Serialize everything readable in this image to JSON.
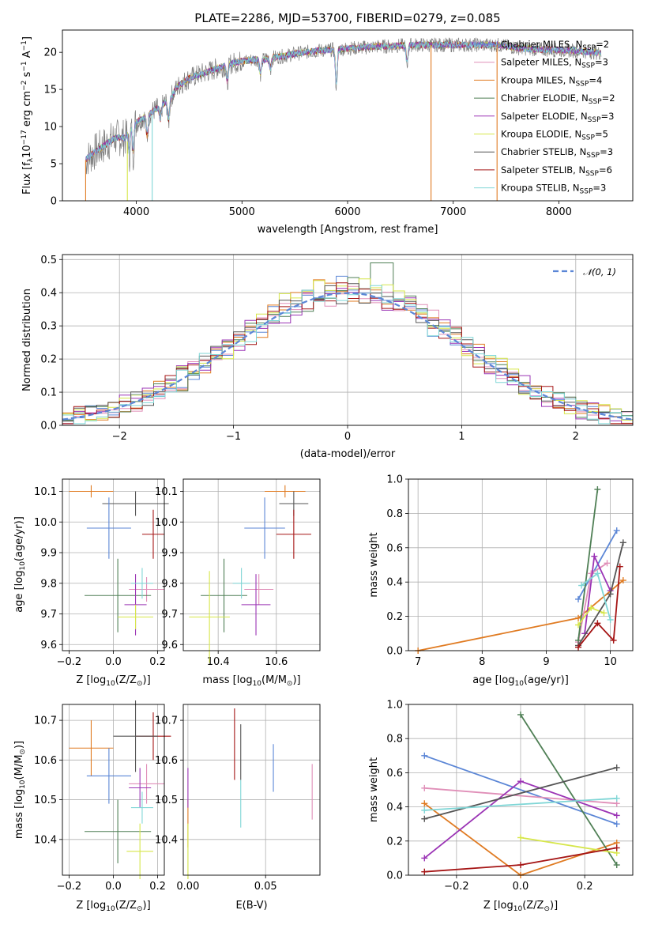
{
  "title": "PLATE=2286, MJD=53700, FIBERID=0279, z=0.085",
  "colors": {
    "Chabrier MILES": "#5b86d6",
    "Salpeter MILES": "#e08fb8",
    "Kroupa MILES": "#e07b22",
    "Chabrier ELODIE": "#4f7f55",
    "Salpeter ELODIE": "#9b34b5",
    "Kroupa ELODIE": "#d6e64a",
    "Chabrier STELIB": "#555555",
    "Salpeter STELIB": "#a51515",
    "Kroupa STELIB": "#7fd6d6",
    "data": "#7f7f7f",
    "normal": "#5b86d6"
  },
  "chart_data": [
    {
      "type": "line",
      "id": "spectrum",
      "xlabel": "wavelength [Angstrom, rest frame]",
      "ylabel": "Flux [f",
      "ylabel_parts": [
        "Flux [f",
        "λ",
        "10",
        "−17",
        " erg cm",
        "−2",
        " s",
        "−1",
        " A",
        "−1",
        "]"
      ],
      "xlim": [
        3300,
        8700
      ],
      "ylim": [
        0,
        23
      ],
      "xticks": [
        4000,
        5000,
        6000,
        7000,
        8000
      ],
      "yticks": [
        0,
        5,
        10,
        15,
        20
      ],
      "legend_loc": "upper right",
      "legend": [
        {
          "label": "Chabrier MILES, N",
          "sub": "SSP",
          "suffix": "=2",
          "model": "Chabrier MILES"
        },
        {
          "label": "Salpeter MILES, N",
          "sub": "SSP",
          "suffix": "=3",
          "model": "Salpeter MILES"
        },
        {
          "label": "Kroupa MILES, N",
          "sub": "SSP",
          "suffix": "=4",
          "model": "Kroupa MILES"
        },
        {
          "label": "Chabrier ELODIE, N",
          "sub": "SSP",
          "suffix": "=2",
          "model": "Chabrier ELODIE"
        },
        {
          "label": "Salpeter ELODIE, N",
          "sub": "SSP",
          "suffix": "=3",
          "model": "Salpeter ELODIE"
        },
        {
          "label": "Kroupa ELODIE, N",
          "sub": "SSP",
          "suffix": "=5",
          "model": "Kroupa ELODIE"
        },
        {
          "label": "Chabrier STELIB, N",
          "sub": "SSP",
          "suffix": "=3",
          "model": "Chabrier STELIB"
        },
        {
          "label": "Salpeter STELIB, N",
          "sub": "SSP",
          "suffix": "=6",
          "model": "Salpeter STELIB"
        },
        {
          "label": "Kroupa STELIB, N",
          "sub": "SSP",
          "suffix": "=3",
          "model": "Kroupa STELIB"
        }
      ],
      "continuum": [
        [
          3520,
          5.5
        ],
        [
          3600,
          6.5
        ],
        [
          3700,
          7.5
        ],
        [
          3800,
          8.5
        ],
        [
          3900,
          8.5
        ],
        [
          3950,
          11
        ],
        [
          4000,
          10.5
        ],
        [
          4100,
          11.5
        ],
        [
          4200,
          12.5
        ],
        [
          4300,
          13.5
        ],
        [
          4400,
          15.5
        ],
        [
          4500,
          16.5
        ],
        [
          4600,
          17
        ],
        [
          4700,
          17.5
        ],
        [
          4800,
          18
        ],
        [
          4900,
          18.5
        ],
        [
          5000,
          18.8
        ],
        [
          5100,
          19
        ],
        [
          5200,
          19
        ],
        [
          5300,
          19.3
        ],
        [
          5400,
          19.5
        ],
        [
          5500,
          19.8
        ],
        [
          5600,
          20
        ],
        [
          5700,
          20.2
        ],
        [
          5800,
          20.3
        ],
        [
          5900,
          20.4
        ],
        [
          6000,
          20.5
        ],
        [
          6100,
          20.6
        ],
        [
          6200,
          20.7
        ],
        [
          6300,
          20.8
        ],
        [
          6400,
          20.8
        ],
        [
          6500,
          20.9
        ],
        [
          6600,
          21
        ],
        [
          6700,
          21
        ],
        [
          6800,
          21
        ],
        [
          6900,
          21
        ],
        [
          7000,
          21
        ],
        [
          7100,
          21
        ],
        [
          7200,
          21
        ],
        [
          7300,
          21
        ],
        [
          7420,
          21
        ],
        [
          7600,
          20.6
        ],
        [
          7800,
          20.4
        ],
        [
          8000,
          20.3
        ],
        [
          8200,
          20.2
        ],
        [
          8400,
          19.9
        ]
      ],
      "absorption_dips": [
        [
          3934,
          4
        ],
        [
          3969,
          4.5
        ],
        [
          4102,
          3
        ],
        [
          4227,
          2
        ],
        [
          4305,
          3
        ],
        [
          4861,
          2.5
        ],
        [
          5175,
          2
        ],
        [
          5270,
          1.5
        ],
        [
          5893,
          5
        ],
        [
          6563,
          2.5
        ]
      ],
      "vertical_drops": [
        {
          "x": 3520,
          "model": "Kroupa MILES",
          "from": 5.5
        },
        {
          "x": 3915,
          "model": "Kroupa ELODIE",
          "from": 8.0
        },
        {
          "x": 4150,
          "model": "Kroupa STELIB",
          "from": 11.5
        },
        {
          "x": 6790,
          "model": "Kroupa MILES",
          "from": 21.0
        },
        {
          "x": 7415,
          "model": "Kroupa MILES",
          "from": 21.0
        }
      ]
    },
    {
      "type": "histogram",
      "id": "residuals",
      "xlabel": "(data-model)/error",
      "ylabel": "Normed distribution",
      "xlim": [
        -2.5,
        2.5
      ],
      "ylim": [
        0,
        0.515
      ],
      "xticks": [
        -2,
        -1,
        0,
        1,
        2
      ],
      "yticks": [
        0.0,
        0.1,
        0.2,
        0.3,
        0.4,
        0.5
      ],
      "grid": true,
      "legend_loc": "upper right",
      "legend": [
        {
          "label": "𝒩(0, 1)",
          "style": "dashed",
          "color_key": "normal"
        }
      ],
      "bin_width": 0.1,
      "models": [
        "Chabrier MILES",
        "Salpeter MILES",
        "Kroupa MILES",
        "Chabrier ELODIE",
        "Salpeter ELODIE",
        "Kroupa ELODIE",
        "Chabrier STELIB",
        "Salpeter STELIB",
        "Kroupa STELIB"
      ],
      "peak_values": {
        "Chabrier ELODIE": 0.49,
        "Salpeter ELODIE": 0.455,
        "Kroupa MILES": 0.33,
        "Kroupa STELIB": 0.15
      }
    },
    {
      "type": "errorbar",
      "id": "age_vs_Z",
      "xlabel_parts": [
        "Z [log",
        "10",
        "(Z/Z",
        "⊙",
        ")]"
      ],
      "ylabel_parts": [
        "age  [log",
        "10",
        "(age/yr)]"
      ],
      "xlim": [
        -0.23,
        0.23
      ],
      "ylim": [
        9.58,
        10.14
      ],
      "xticks": [
        -0.2,
        0.0,
        0.2
      ],
      "yticks": [
        9.6,
        9.7,
        9.8,
        9.9,
        10.0,
        10.1
      ],
      "grid": true,
      "points": [
        {
          "model": "Kroupa MILES",
          "x": -0.1,
          "xerr": 0.1,
          "y": 10.1,
          "yerr": 0.02
        },
        {
          "model": "Chabrier STELIB",
          "x": 0.1,
          "xerr": 0.15,
          "y": 10.06,
          "yerr": 0.04
        },
        {
          "model": "Chabrier MILES",
          "x": -0.02,
          "xerr": 0.1,
          "y": 9.98,
          "yerr": 0.1
        },
        {
          "model": "Salpeter STELIB",
          "x": 0.18,
          "xerr": 0.05,
          "y": 9.96,
          "yerr": 0.08
        },
        {
          "model": "Salpeter MILES",
          "x": 0.15,
          "xerr": 0.08,
          "y": 9.78,
          "yerr": 0.04
        },
        {
          "model": "Chabrier ELODIE",
          "x": 0.02,
          "xerr": 0.15,
          "y": 9.76,
          "yerr": 0.12
        },
        {
          "model": "Salpeter ELODIE",
          "x": 0.1,
          "xerr": 0.05,
          "y": 9.73,
          "yerr": 0.1
        },
        {
          "model": "Kroupa ELODIE",
          "x": 0.1,
          "xerr": 0.08,
          "y": 9.69,
          "yerr": 0.04
        },
        {
          "model": "Kroupa STELIB",
          "x": 0.13,
          "xerr": 0.05,
          "y": 9.8,
          "yerr": 0.05
        }
      ]
    },
    {
      "type": "errorbar",
      "id": "age_vs_mass",
      "xlabel_parts": [
        "mass [log",
        "10",
        "(M/M",
        "⊙",
        ")]"
      ],
      "xlim": [
        10.28,
        10.75
      ],
      "ylim": [
        9.58,
        10.14
      ],
      "xticks": [
        10.4,
        10.6
      ],
      "yticks": [
        9.6,
        9.7,
        9.8,
        9.9,
        10.0,
        10.1
      ],
      "grid": true,
      "points": [
        {
          "model": "Kroupa MILES",
          "x": 10.63,
          "xerr": 0.07,
          "y": 10.1,
          "yerr": 0.02
        },
        {
          "model": "Chabrier STELIB",
          "x": 10.66,
          "xerr": 0.05,
          "y": 10.06,
          "yerr": 0.04
        },
        {
          "model": "Chabrier MILES",
          "x": 10.56,
          "xerr": 0.07,
          "y": 9.98,
          "yerr": 0.1
        },
        {
          "model": "Salpeter STELIB",
          "x": 10.66,
          "xerr": 0.06,
          "y": 9.96,
          "yerr": 0.08
        },
        {
          "model": "Salpeter MILES",
          "x": 10.54,
          "xerr": 0.05,
          "y": 9.78,
          "yerr": 0.05
        },
        {
          "model": "Chabrier ELODIE",
          "x": 10.42,
          "xerr": 0.08,
          "y": 9.76,
          "yerr": 0.12
        },
        {
          "model": "Salpeter ELODIE",
          "x": 10.53,
          "xerr": 0.05,
          "y": 9.73,
          "yerr": 0.1
        },
        {
          "model": "Kroupa ELODIE",
          "x": 10.37,
          "xerr": 0.07,
          "y": 9.69,
          "yerr": 0.15
        },
        {
          "model": "Kroupa STELIB",
          "x": 10.48,
          "xerr": 0.03,
          "y": 9.8,
          "yerr": 0.05
        }
      ]
    },
    {
      "type": "line",
      "id": "weight_vs_age",
      "xlabel_parts": [
        "age  [log",
        "10",
        "(age/yr)]"
      ],
      "ylabel": "mass weight",
      "xlim": [
        6.85,
        10.35
      ],
      "ylim": [
        0,
        1.0
      ],
      "xticks": [
        7,
        8,
        9,
        10
      ],
      "yticks": [
        0.0,
        0.2,
        0.4,
        0.6,
        0.8,
        1.0
      ],
      "grid": true,
      "series": [
        {
          "model": "Kroupa MILES",
          "x": [
            7.0,
            9.5,
            10.2
          ],
          "y": [
            0.0,
            0.19,
            0.41
          ]
        },
        {
          "model": "Chabrier MILES",
          "x": [
            9.5,
            10.1
          ],
          "y": [
            0.3,
            0.7
          ]
        },
        {
          "model": "Salpeter MILES",
          "x": [
            9.5,
            9.7,
            9.95
          ],
          "y": [
            0.05,
            0.45,
            0.51
          ]
        },
        {
          "model": "Chabrier ELODIE",
          "x": [
            9.5,
            9.8
          ],
          "y": [
            0.06,
            0.94
          ]
        },
        {
          "model": "Salpeter ELODIE",
          "x": [
            9.6,
            9.75,
            10.0
          ],
          "y": [
            0.1,
            0.55,
            0.35
          ]
        },
        {
          "model": "Kroupa ELODIE",
          "x": [
            9.5,
            9.7,
            9.9
          ],
          "y": [
            0.15,
            0.25,
            0.22
          ]
        },
        {
          "model": "Chabrier STELIB",
          "x": [
            9.5,
            10.0,
            10.2
          ],
          "y": [
            0.03,
            0.33,
            0.63
          ]
        },
        {
          "model": "Salpeter STELIB",
          "x": [
            9.5,
            9.8,
            10.05,
            10.15
          ],
          "y": [
            0.02,
            0.16,
            0.06,
            0.49
          ]
        },
        {
          "model": "Kroupa STELIB",
          "x": [
            9.55,
            9.8,
            10.0
          ],
          "y": [
            0.38,
            0.45,
            0.18
          ]
        }
      ]
    },
    {
      "type": "errorbar",
      "id": "mass_vs_Z",
      "xlabel_parts": [
        "Z [log",
        "10",
        "(Z/Z",
        "⊙",
        ")]"
      ],
      "ylabel_parts": [
        "mass [log",
        "10",
        "(M/M",
        "⊙",
        ")]"
      ],
      "xlim": [
        -0.23,
        0.23
      ],
      "ylim": [
        10.31,
        10.74
      ],
      "xticks": [
        -0.2,
        0.0,
        0.2
      ],
      "yticks": [
        10.4,
        10.5,
        10.6,
        10.7
      ],
      "grid": true,
      "points": [
        {
          "model": "Kroupa MILES",
          "x": -0.1,
          "xerr": 0.1,
          "y": 10.63,
          "yerr": 0.07
        },
        {
          "model": "Salpeter STELIB",
          "x": 0.18,
          "xerr": 0.08,
          "y": 10.66,
          "yerr": 0.06
        },
        {
          "model": "Chabrier STELIB",
          "x": 0.1,
          "xerr": 0.1,
          "y": 10.66,
          "yerr": 0.09
        },
        {
          "model": "Chabrier MILES",
          "x": -0.02,
          "xerr": 0.1,
          "y": 10.56,
          "yerr": 0.07
        },
        {
          "model": "Salpeter MILES",
          "x": 0.15,
          "xerr": 0.08,
          "y": 10.54,
          "yerr": 0.05
        },
        {
          "model": "Salpeter ELODIE",
          "x": 0.12,
          "xerr": 0.05,
          "y": 10.53,
          "yerr": 0.05
        },
        {
          "model": "Chabrier ELODIE",
          "x": 0.02,
          "xerr": 0.15,
          "y": 10.42,
          "yerr": 0.08
        },
        {
          "model": "Kroupa ELODIE",
          "x": 0.12,
          "xerr": 0.06,
          "y": 10.37,
          "yerr": 0.07
        },
        {
          "model": "Kroupa STELIB",
          "x": 0.13,
          "xerr": 0.05,
          "y": 10.48,
          "yerr": 0.04
        }
      ]
    },
    {
      "type": "errorbar",
      "id": "mass_vs_ebv",
      "xlabel": "E(B-V)",
      "xlim": [
        -0.003,
        0.085
      ],
      "ylim": [
        10.31,
        10.74
      ],
      "xticks": [
        0.0,
        0.05
      ],
      "yticks": [
        10.4,
        10.5,
        10.6,
        10.7
      ],
      "grid": true,
      "points": [
        {
          "model": "Kroupa MILES",
          "x": 0.0,
          "y": 10.44,
          "yerr": 0.06
        },
        {
          "model": "Salpeter ELODIE",
          "x": 0.0,
          "y": 10.53,
          "yerr": 0.05
        },
        {
          "model": "Kroupa ELODIE",
          "x": 0.0,
          "y": 10.37,
          "yerr": 0.07
        },
        {
          "model": "Salpeter STELIB",
          "x": 0.03,
          "y": 10.64,
          "yerr": 0.09
        },
        {
          "model": "Chabrier STELIB",
          "x": 0.034,
          "y": 10.62,
          "yerr": 0.07
        },
        {
          "model": "Kroupa STELIB",
          "x": 0.034,
          "y": 10.49,
          "yerr": 0.06
        },
        {
          "model": "Chabrier MILES",
          "x": 0.055,
          "y": 10.58,
          "yerr": 0.06
        },
        {
          "model": "Salpeter MILES",
          "x": 0.08,
          "y": 10.52,
          "yerr": 0.07
        }
      ]
    },
    {
      "type": "line",
      "id": "weight_vs_Z",
      "xlabel_parts": [
        "Z [log",
        "10",
        "(Z/Z",
        "⊙",
        ")]"
      ],
      "ylabel": "mass weight",
      "xlim": [
        -0.35,
        0.35
      ],
      "ylim": [
        0,
        1.0
      ],
      "xticks": [
        -0.2,
        0.0,
        0.2
      ],
      "yticks": [
        0.0,
        0.2,
        0.4,
        0.6,
        0.8,
        1.0
      ],
      "grid": true,
      "series": [
        {
          "model": "Chabrier MILES",
          "x": [
            -0.3,
            0.3
          ],
          "y": [
            0.7,
            0.3
          ]
        },
        {
          "model": "Salpeter MILES",
          "x": [
            -0.3,
            0.3
          ],
          "y": [
            0.51,
            0.42
          ]
        },
        {
          "model": "Kroupa MILES",
          "x": [
            -0.3,
            0.0,
            0.3
          ],
          "y": [
            0.42,
            0.0,
            0.19
          ]
        },
        {
          "model": "Chabrier ELODIE",
          "x": [
            0.0,
            0.3
          ],
          "y": [
            0.94,
            0.06
          ]
        },
        {
          "model": "Salpeter ELODIE",
          "x": [
            -0.3,
            0.0,
            0.3
          ],
          "y": [
            0.1,
            0.55,
            0.35
          ]
        },
        {
          "model": "Kroupa ELODIE",
          "x": [
            0.0,
            0.3
          ],
          "y": [
            0.22,
            0.13
          ]
        },
        {
          "model": "Chabrier STELIB",
          "x": [
            -0.3,
            0.3
          ],
          "y": [
            0.33,
            0.63
          ]
        },
        {
          "model": "Salpeter STELIB",
          "x": [
            -0.3,
            0.0,
            0.3
          ],
          "y": [
            0.02,
            0.06,
            0.16
          ]
        },
        {
          "model": "Kroupa STELIB",
          "x": [
            -0.3,
            0.3
          ],
          "y": [
            0.38,
            0.45
          ]
        }
      ]
    }
  ]
}
